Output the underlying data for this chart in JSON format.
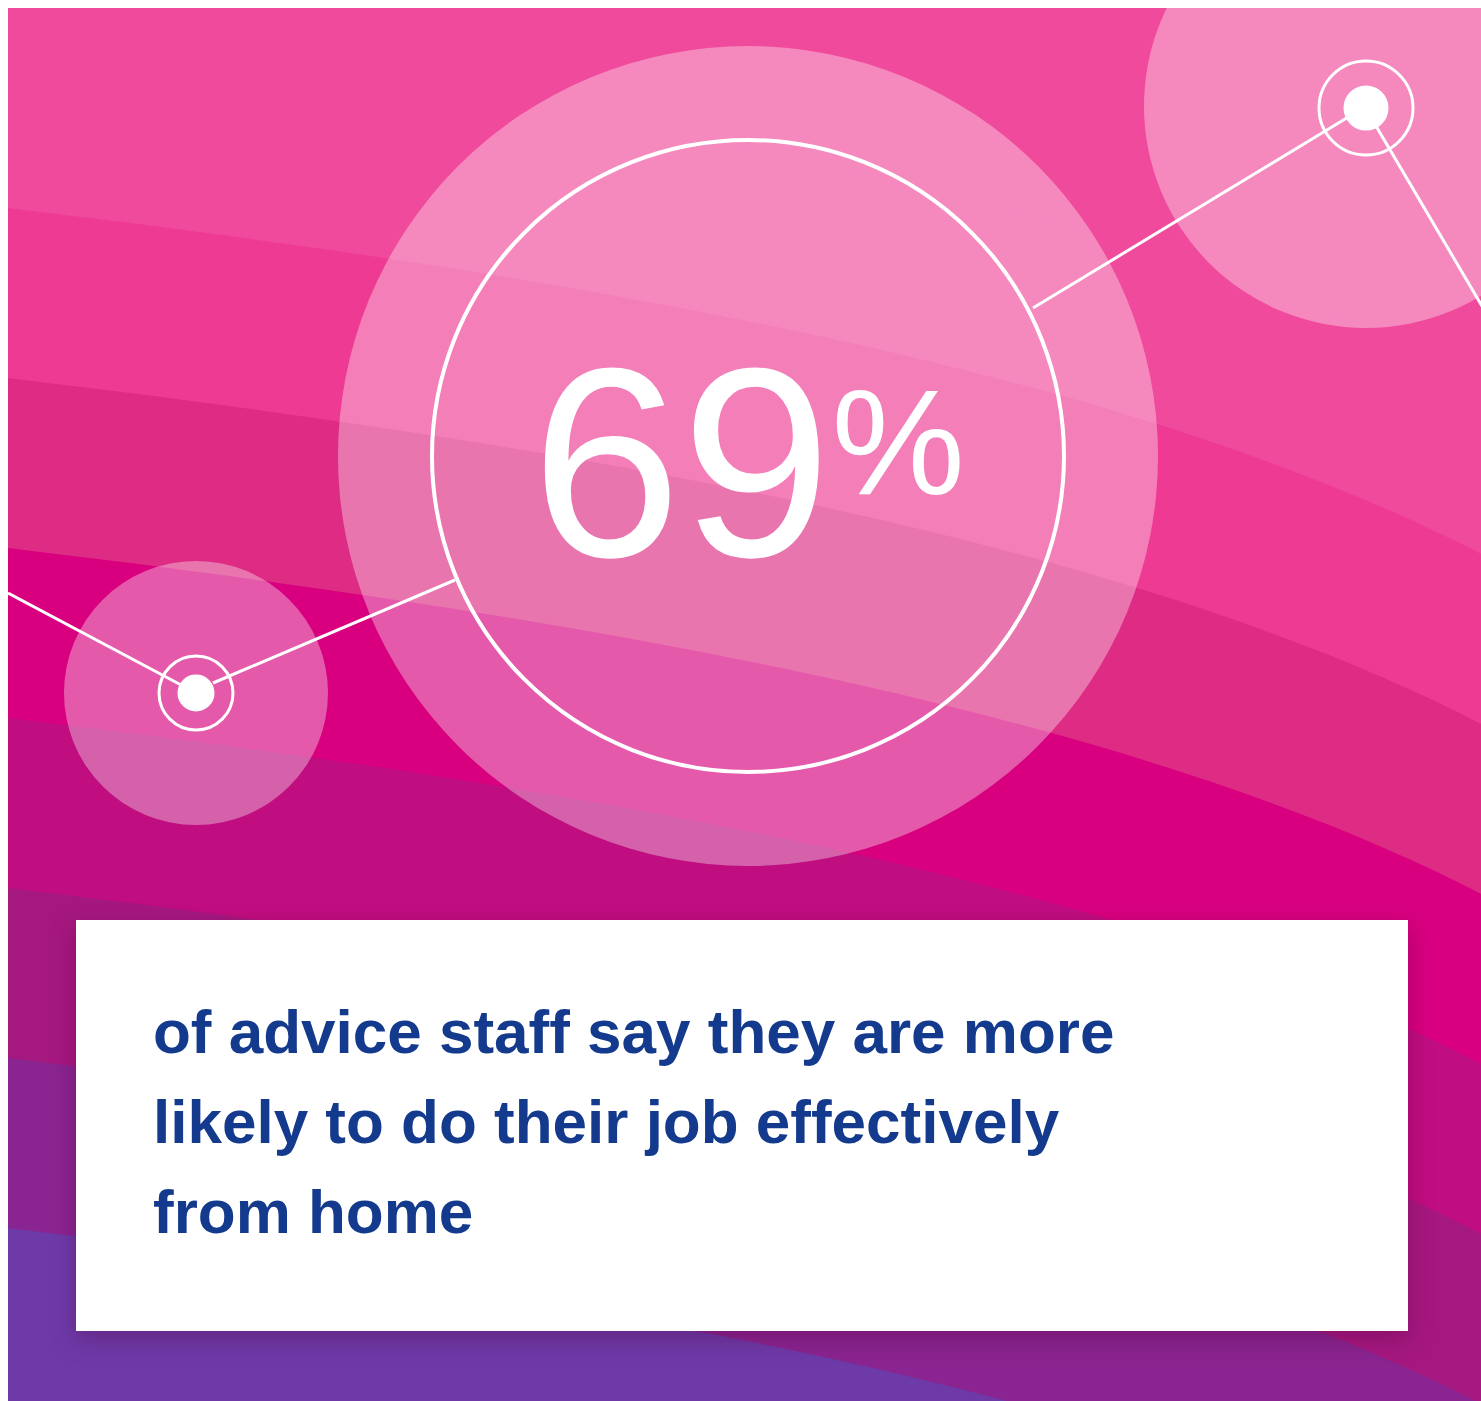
{
  "chart_data": {
    "type": "other",
    "values": [
      69
    ],
    "value_labels": [
      "69$^{%}$"
    ],
    "annotations": [
      "of advice staff say they are more likely to do their job effectively from home"
    ]
  }
}
